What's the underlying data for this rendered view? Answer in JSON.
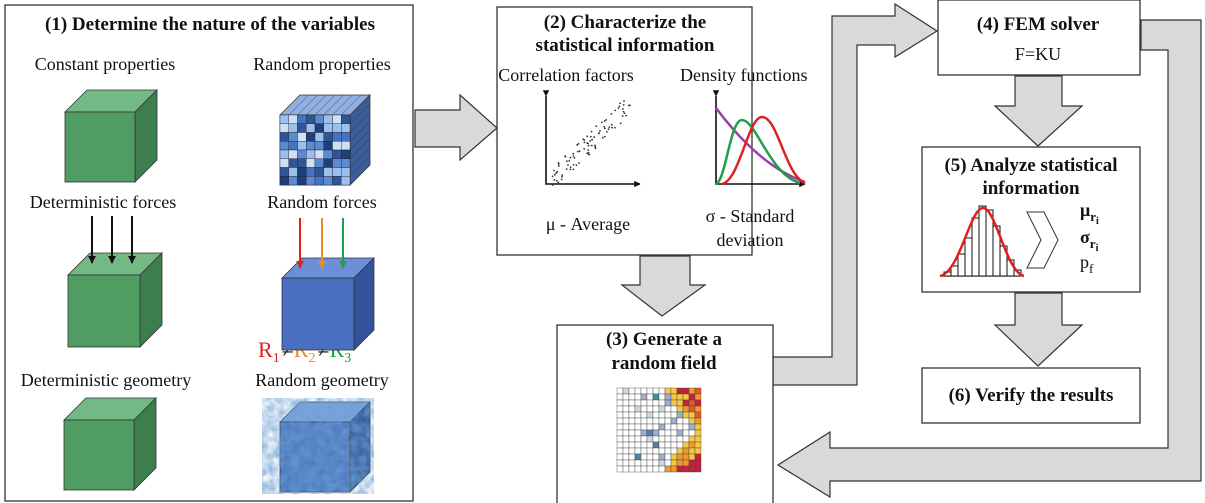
{
  "step1": {
    "title": "(1) Determine the nature of the variables",
    "labels": [
      "Constant properties",
      "Random properties",
      "Deterministic forces",
      "Random forces",
      "Deterministic geometry",
      "Random geometry"
    ],
    "inequality": {
      "terms": [
        {
          "letter": "R",
          "sub": "1"
        },
        {
          "letter": "R",
          "sub": "2"
        },
        {
          "letter": "R",
          "sub": "3"
        }
      ],
      "sign": "≠"
    }
  },
  "step2": {
    "title": [
      "(2) Characterize the",
      "statistical information"
    ],
    "left": {
      "heading": "Correlation factors",
      "caption": [
        "μ - Average"
      ]
    },
    "right": {
      "heading": "Density functions",
      "caption": [
        "σ - Standard",
        "deviation"
      ]
    }
  },
  "step3": {
    "title": [
      "(3) Generate a",
      "random field"
    ]
  },
  "step4": {
    "title": "(4) FEM solver",
    "equation": "F=KU"
  },
  "step5": {
    "title": [
      "(5) Analyze statistical",
      "information"
    ],
    "outputs": [
      {
        "symbol": "μ",
        "sub": "r",
        "subsub": "i"
      },
      {
        "symbol": "σ",
        "sub": "r",
        "subsub": "i"
      },
      {
        "symbol": "p",
        "sub": "f"
      }
    ]
  },
  "step6": {
    "title": "(6) Verify the results"
  }
}
